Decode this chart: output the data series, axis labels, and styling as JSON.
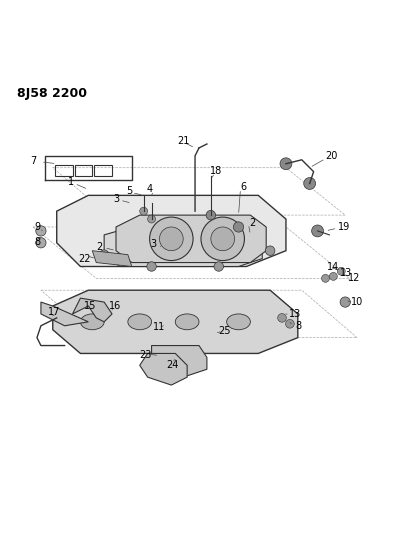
{
  "title_code": "8J58 2200",
  "bg_color": "#ffffff",
  "line_color": "#333333",
  "label_color": "#000000",
  "title_fontsize": 9,
  "label_fontsize": 7,
  "fig_width": 3.98,
  "fig_height": 5.33,
  "dpi": 100
}
